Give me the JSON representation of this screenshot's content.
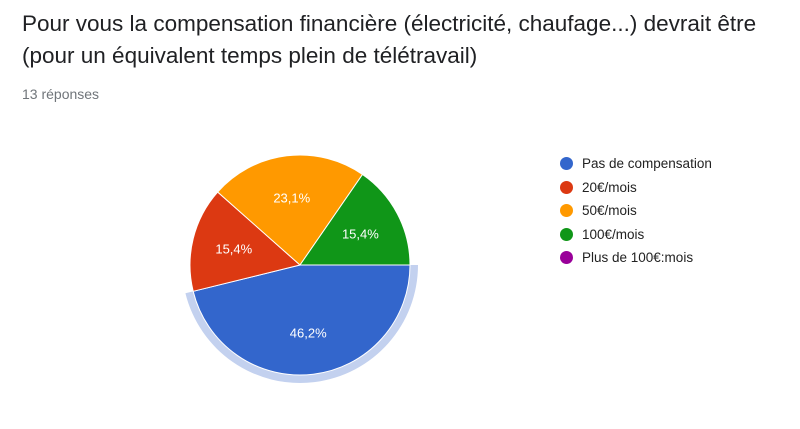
{
  "header": {
    "title": "Pour vous la compensation financière (électricité, chaufage...) devrait être (pour un équivalent temps plein de télétravail)",
    "response_count": "13 réponses"
  },
  "chart_data": {
    "type": "pie",
    "legend_position": "right",
    "highlighted_slice": "Pas de compensation",
    "slices": [
      {
        "name": "Pas de compensation",
        "value": 46.2,
        "label": "46,2%",
        "color": "#3366cc"
      },
      {
        "name": "20€/mois",
        "value": 15.4,
        "label": "15,4%",
        "color": "#dc3912"
      },
      {
        "name": "50€/mois",
        "value": 23.1,
        "label": "23,1%",
        "color": "#ff9900"
      },
      {
        "name": "100€/mois",
        "value": 15.4,
        "label": "15,4%",
        "color": "#109618"
      },
      {
        "name": "Plus de 100€:mois",
        "value": 0,
        "label": "",
        "color": "#990099"
      }
    ]
  }
}
